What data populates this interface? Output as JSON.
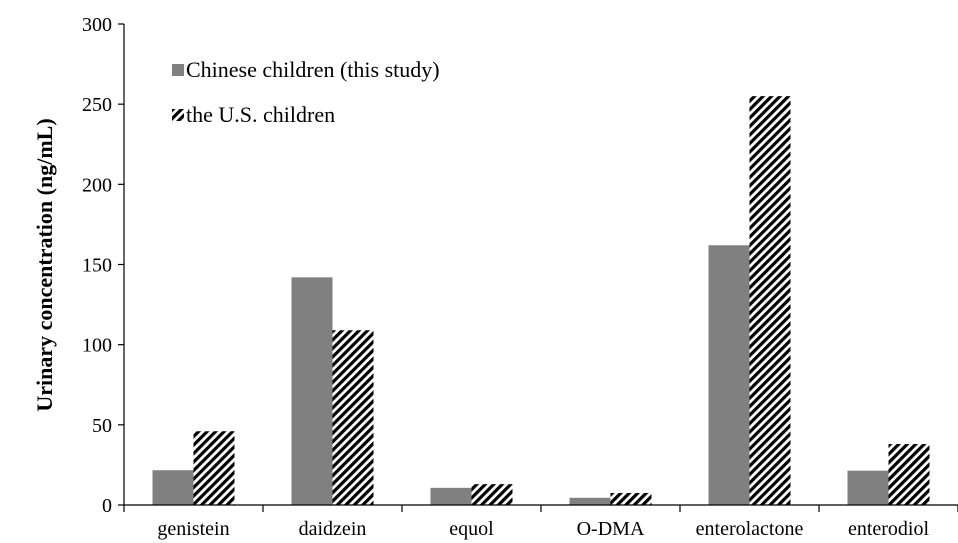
{
  "chart_data": {
    "type": "bar",
    "categories": [
      "genistein",
      "daidzein",
      "equol",
      "O-DMA",
      "enterolactone",
      "enterodiol"
    ],
    "series": [
      {
        "name": "Chinese children (this study)",
        "values": [
          21.7,
          142,
          10.7,
          4.5,
          162,
          21.4
        ],
        "color": "#808080",
        "pattern": "solid"
      },
      {
        "name": "the U.S. children",
        "values": [
          46,
          109,
          13,
          7.5,
          255,
          38
        ],
        "color": "#000000",
        "pattern": "diagonal-hatch"
      }
    ],
    "ylabel": "Urinary concentration (ng/mL)",
    "ylim": [
      0,
      300
    ],
    "yticks": [
      0,
      50,
      100,
      150,
      200,
      250,
      300
    ],
    "grid": false,
    "legend_position": "top-left"
  }
}
